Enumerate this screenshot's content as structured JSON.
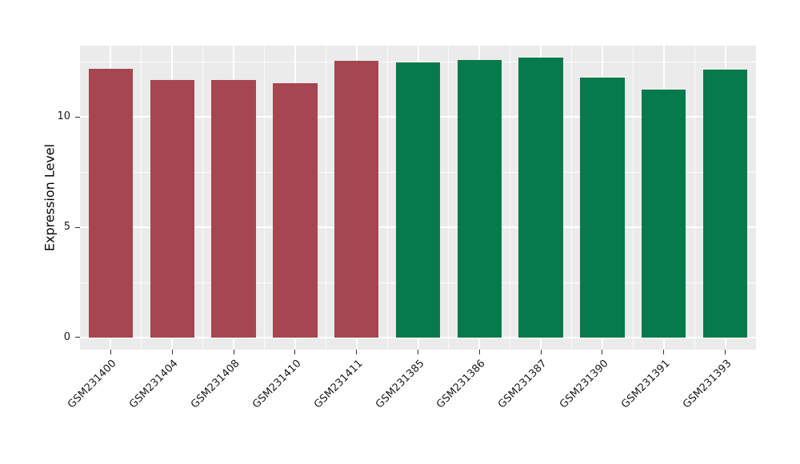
{
  "chart_data": {
    "type": "bar",
    "title": "",
    "xlabel": "",
    "ylabel": "Expression Level",
    "categories": [
      "GSM231400",
      "GSM231404",
      "GSM231408",
      "GSM231410",
      "GSM231411",
      "GSM231385",
      "GSM231386",
      "GSM231387",
      "GSM231390",
      "GSM231391",
      "GSM231393"
    ],
    "values": [
      12.2,
      11.7,
      11.7,
      11.55,
      12.55,
      12.5,
      12.6,
      12.7,
      11.8,
      11.25,
      12.15
    ],
    "bar_colors": [
      "#A64650",
      "#A64650",
      "#A64650",
      "#A64650",
      "#A64650",
      "#077A4D",
      "#077A4D",
      "#077A4D",
      "#077A4D",
      "#077A4D",
      "#077A4D"
    ],
    "group_colors": {
      "left_group": "#A64650",
      "right_group": "#077A4D"
    },
    "ylim": [
      -0.55,
      13.25
    ],
    "yticks": [
      0,
      5,
      10
    ],
    "yminor": [
      2.5,
      7.5,
      12.5
    ],
    "grid": "on",
    "legend": "none",
    "panel_background": "#EBEBEB",
    "grid_color": "#FFFFFF",
    "tick_color": "#333333",
    "text_color": "#1a1a1a"
  }
}
